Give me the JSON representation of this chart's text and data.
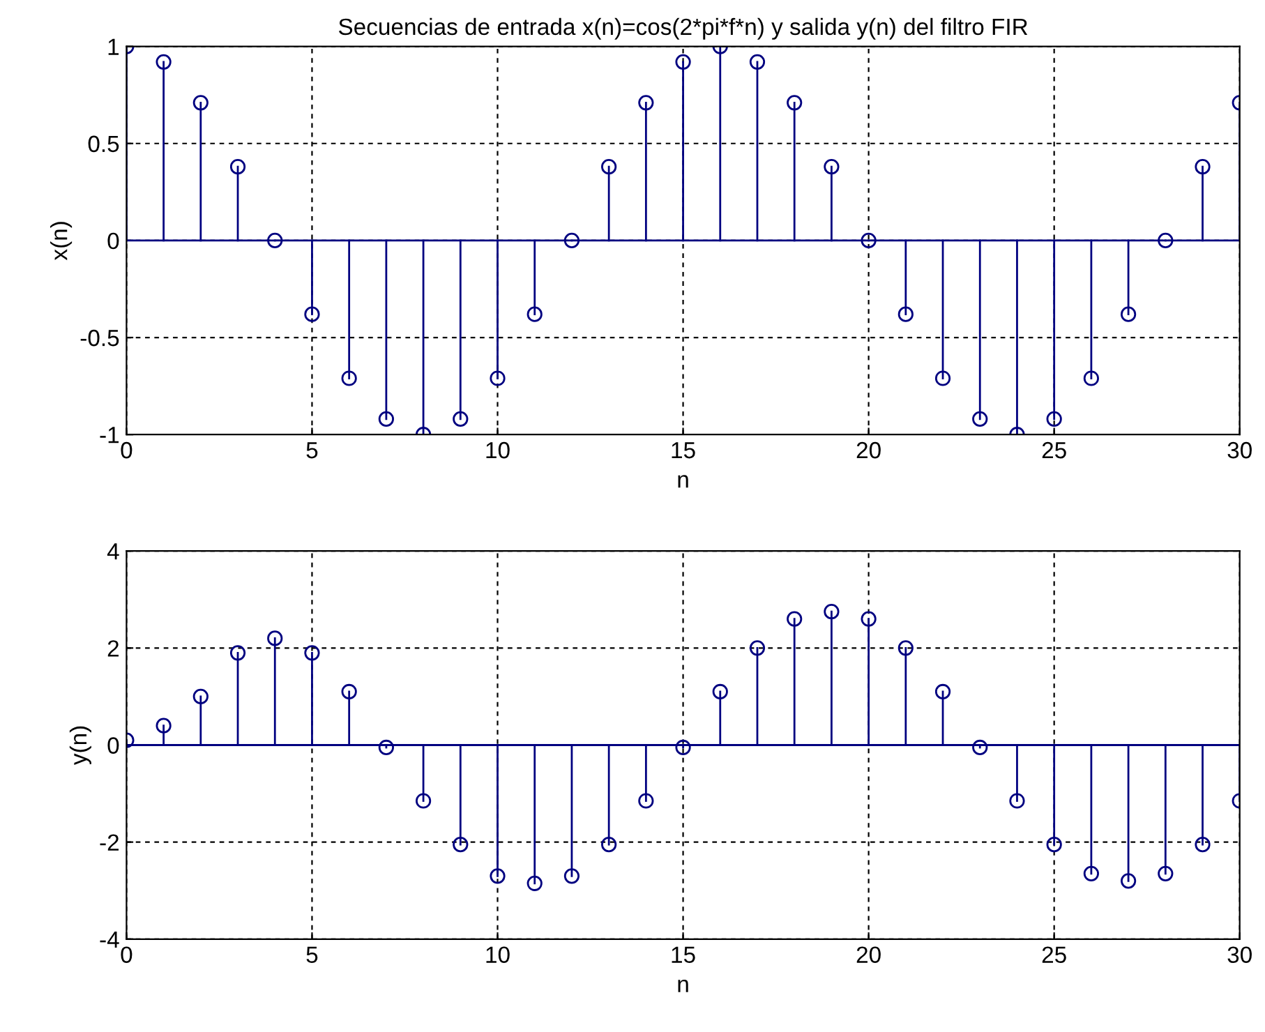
{
  "chart_data": [
    {
      "type": "lollipop",
      "title": "Secuencias de entrada x(n)=cos(2*pi*f*n) y salida y(n) del filtro FIR",
      "xlabel": "n",
      "ylabel": "x(n)",
      "x": [
        0,
        1,
        2,
        3,
        4,
        5,
        6,
        7,
        8,
        9,
        10,
        11,
        12,
        13,
        14,
        15,
        16,
        17,
        18,
        19,
        20,
        21,
        22,
        23,
        24,
        25,
        26,
        27,
        28,
        29,
        30
      ],
      "series": [
        {
          "color": "#000080",
          "values": [
            1,
            0.92,
            0.71,
            0.38,
            0,
            -0.38,
            -0.71,
            -0.92,
            -1,
            -0.92,
            -0.71,
            -0.38,
            0,
            0.38,
            0.71,
            0.92,
            1,
            0.92,
            0.71,
            0.38,
            0,
            -0.38,
            -0.71,
            -0.92,
            -1,
            -0.92,
            -0.71,
            -0.38,
            0,
            0.38,
            0.71
          ]
        }
      ],
      "xlim": [
        0,
        30
      ],
      "xticks": [
        0,
        5,
        10,
        15,
        20,
        25,
        30
      ],
      "ylim": [
        -1,
        1
      ],
      "yticks": [
        -1,
        -0.5,
        0,
        0.5,
        1
      ],
      "ref_lines": [
        {
          "axis": "y",
          "value": 0,
          "color": "#000080"
        }
      ],
      "grid": true,
      "marker": "circle"
    },
    {
      "type": "lollipop",
      "xlabel": "n",
      "ylabel": "y(n)",
      "x": [
        0,
        1,
        2,
        3,
        4,
        5,
        6,
        7,
        8,
        9,
        10,
        11,
        12,
        13,
        14,
        15,
        16,
        17,
        18,
        19,
        20,
        21,
        22,
        23,
        24,
        25,
        26,
        27,
        28,
        29,
        30
      ],
      "series": [
        {
          "color": "#000080",
          "values": [
            0.1,
            0.4,
            1.0,
            1.9,
            2.2,
            1.9,
            1.1,
            -0.05,
            -1.15,
            -2.05,
            -2.7,
            -2.85,
            -2.7,
            -2.05,
            -1.15,
            -0.05,
            1.1,
            2.0,
            2.6,
            2.75,
            2.6,
            2.0,
            1.1,
            -0.05,
            -1.15,
            -2.05,
            -2.65,
            -2.8,
            -2.65,
            -2.05,
            -1.15
          ]
        }
      ],
      "xlim": [
        0,
        30
      ],
      "xticks": [
        0,
        5,
        10,
        15,
        20,
        25,
        30
      ],
      "ylim": [
        -4,
        4
      ],
      "yticks": [
        -4,
        -2,
        0,
        2,
        4
      ],
      "ref_lines": [
        {
          "axis": "y",
          "value": 0,
          "color": "#000080"
        }
      ],
      "grid": true,
      "marker": "circle"
    }
  ]
}
